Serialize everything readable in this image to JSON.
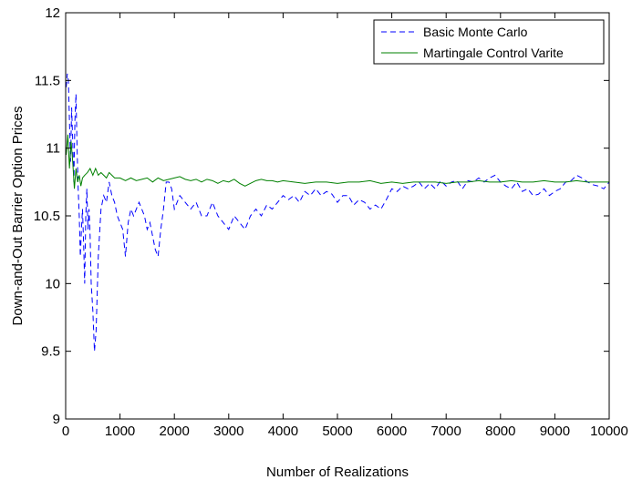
{
  "chart_data": {
    "type": "line",
    "xlabel": "Number of Realizations",
    "ylabel": "Down-and-Out Barrier Option Prices",
    "xlim": [
      0,
      10000
    ],
    "ylim": [
      9,
      12
    ],
    "xticks": [
      0,
      1000,
      2000,
      3000,
      4000,
      5000,
      6000,
      7000,
      8000,
      9000,
      10000
    ],
    "yticks": [
      9,
      9.5,
      10,
      10.5,
      11,
      11.5,
      12
    ],
    "xtick_labels": [
      "0",
      "1000",
      "2000",
      "3000",
      "4000",
      "5000",
      "6000",
      "7000",
      "8000",
      "9000",
      "10000"
    ],
    "ytick_labels": [
      "9",
      "9.5",
      "10",
      "10.5",
      "11",
      "11.5",
      "12"
    ],
    "grid": false,
    "legend": {
      "position": "top-right"
    },
    "series": [
      {
        "name": "Basic Monte Carlo",
        "color": "#0000ff",
        "style": "dashed",
        "x": [
          10,
          30,
          50,
          70,
          90,
          110,
          130,
          150,
          170,
          190,
          210,
          230,
          250,
          270,
          290,
          310,
          330,
          350,
          370,
          390,
          410,
          430,
          450,
          470,
          500,
          530,
          560,
          600,
          650,
          700,
          750,
          800,
          850,
          900,
          950,
          1000,
          1050,
          1100,
          1150,
          1200,
          1250,
          1300,
          1350,
          1400,
          1450,
          1500,
          1550,
          1600,
          1650,
          1700,
          1750,
          1800,
          1850,
          1900,
          1950,
          2000,
          2100,
          2200,
          2300,
          2400,
          2500,
          2600,
          2700,
          2800,
          2900,
          3000,
          3100,
          3200,
          3300,
          3400,
          3500,
          3600,
          3700,
          3800,
          3900,
          4000,
          4100,
          4200,
          4300,
          4400,
          4500,
          4600,
          4700,
          4800,
          4900,
          5000,
          5100,
          5200,
          5300,
          5400,
          5500,
          5600,
          5700,
          5800,
          5900,
          6000,
          6100,
          6200,
          6300,
          6400,
          6500,
          6600,
          6700,
          6800,
          6900,
          7000,
          7100,
          7200,
          7300,
          7400,
          7500,
          7600,
          7700,
          7800,
          7900,
          8000,
          8100,
          8200,
          8300,
          8400,
          8500,
          8600,
          8700,
          8800,
          8900,
          9000,
          9100,
          9200,
          9300,
          9400,
          9500,
          9600,
          9700,
          9800,
          9900,
          10000
        ],
        "y": [
          11.45,
          11.55,
          11.5,
          11.2,
          10.9,
          11.3,
          11.05,
          10.75,
          11.2,
          11.4,
          11.0,
          10.7,
          10.5,
          10.2,
          10.4,
          10.55,
          10.3,
          10.0,
          10.5,
          10.7,
          10.4,
          10.55,
          10.35,
          10.0,
          9.8,
          9.5,
          9.65,
          10.2,
          10.55,
          10.65,
          10.6,
          10.75,
          10.65,
          10.6,
          10.5,
          10.45,
          10.4,
          10.2,
          10.45,
          10.55,
          10.5,
          10.55,
          10.6,
          10.55,
          10.5,
          10.4,
          10.45,
          10.35,
          10.25,
          10.2,
          10.4,
          10.55,
          10.75,
          10.75,
          10.7,
          10.55,
          10.65,
          10.6,
          10.55,
          10.6,
          10.5,
          10.5,
          10.6,
          10.5,
          10.45,
          10.4,
          10.5,
          10.45,
          10.4,
          10.5,
          10.55,
          10.5,
          10.58,
          10.55,
          10.6,
          10.65,
          10.62,
          10.65,
          10.6,
          10.68,
          10.65,
          10.7,
          10.65,
          10.68,
          10.66,
          10.6,
          10.65,
          10.65,
          10.58,
          10.62,
          10.6,
          10.55,
          10.58,
          10.55,
          10.62,
          10.7,
          10.68,
          10.72,
          10.7,
          10.72,
          10.75,
          10.7,
          10.74,
          10.7,
          10.76,
          10.72,
          10.75,
          10.76,
          10.7,
          10.76,
          10.75,
          10.78,
          10.75,
          10.78,
          10.8,
          10.75,
          10.72,
          10.7,
          10.75,
          10.68,
          10.7,
          10.65,
          10.66,
          10.7,
          10.65,
          10.68,
          10.7,
          10.75,
          10.76,
          10.8,
          10.78,
          10.75,
          10.73,
          10.72,
          10.7,
          10.75
        ]
      },
      {
        "name": "Martingale Control Varite",
        "color": "#008000",
        "style": "solid",
        "x": [
          10,
          40,
          70,
          100,
          130,
          160,
          190,
          220,
          250,
          280,
          310,
          350,
          400,
          450,
          500,
          550,
          600,
          650,
          700,
          750,
          800,
          850,
          900,
          1000,
          1100,
          1200,
          1300,
          1400,
          1500,
          1600,
          1700,
          1800,
          1900,
          2000,
          2100,
          2200,
          2300,
          2400,
          2500,
          2600,
          2700,
          2800,
          2900,
          3000,
          3100,
          3200,
          3300,
          3400,
          3500,
          3600,
          3700,
          3800,
          3900,
          4000,
          4200,
          4400,
          4600,
          4800,
          5000,
          5200,
          5400,
          5600,
          5800,
          6000,
          6200,
          6400,
          6600,
          6800,
          7000,
          7200,
          7400,
          7600,
          7800,
          8000,
          8200,
          8400,
          8600,
          8800,
          9000,
          9200,
          9400,
          9600,
          9800,
          10000
        ],
        "y": [
          10.95,
          11.1,
          10.85,
          11.05,
          10.9,
          10.7,
          10.85,
          10.75,
          10.8,
          10.72,
          10.78,
          10.8,
          10.82,
          10.85,
          10.8,
          10.85,
          10.8,
          10.82,
          10.8,
          10.78,
          10.82,
          10.8,
          10.78,
          10.78,
          10.76,
          10.78,
          10.76,
          10.77,
          10.78,
          10.75,
          10.78,
          10.76,
          10.77,
          10.78,
          10.79,
          10.77,
          10.76,
          10.77,
          10.75,
          10.77,
          10.76,
          10.74,
          10.76,
          10.75,
          10.77,
          10.74,
          10.72,
          10.74,
          10.76,
          10.77,
          10.76,
          10.76,
          10.75,
          10.76,
          10.75,
          10.74,
          10.75,
          10.75,
          10.74,
          10.75,
          10.75,
          10.76,
          10.74,
          10.75,
          10.74,
          10.75,
          10.75,
          10.75,
          10.74,
          10.75,
          10.75,
          10.76,
          10.75,
          10.75,
          10.76,
          10.75,
          10.75,
          10.76,
          10.75,
          10.75,
          10.76,
          10.75,
          10.75,
          10.75
        ]
      }
    ]
  }
}
